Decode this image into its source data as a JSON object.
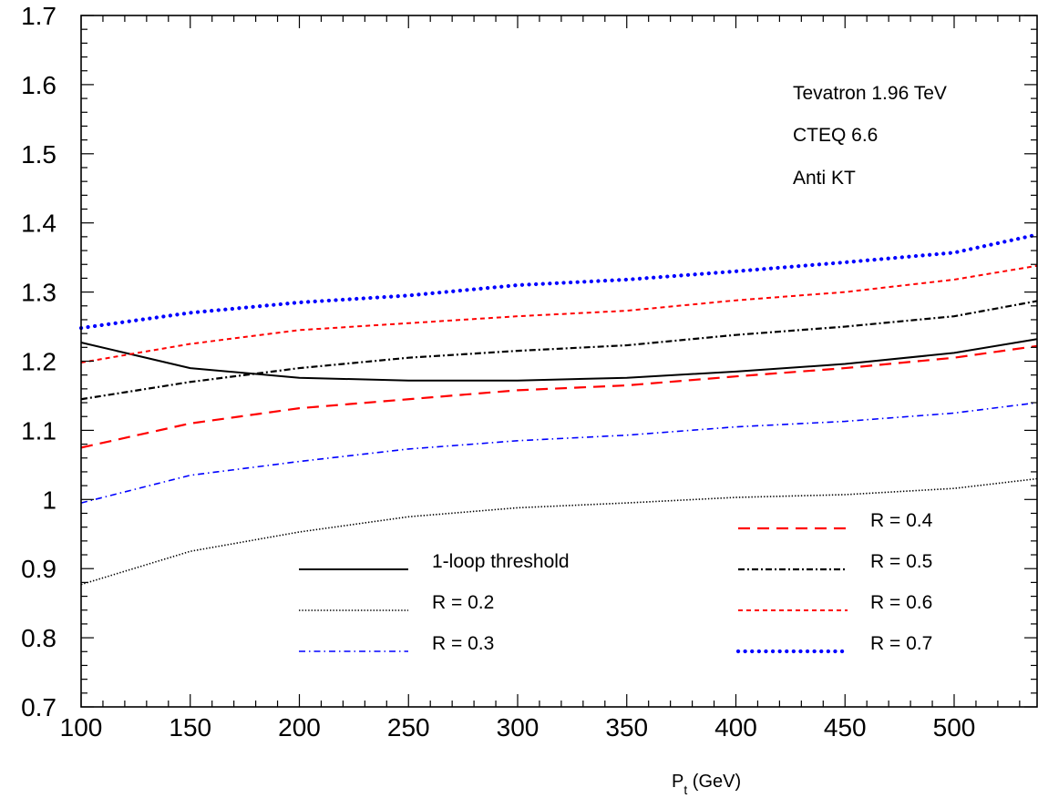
{
  "chart_data": {
    "type": "line",
    "title": "",
    "xlabel": "P",
    "xlabel_sub": "t",
    "xlabel_unit": " (GeV)",
    "ylabel": "",
    "xlim": [
      100,
      538
    ],
    "ylim": [
      0.7,
      1.7
    ],
    "x_ticks": [
      100,
      150,
      200,
      250,
      300,
      350,
      400,
      450,
      500
    ],
    "x_tick_labels": [
      "100",
      "150",
      "200",
      "250",
      "300",
      "350",
      "400",
      "450",
      "500"
    ],
    "y_ticks": [
      0.7,
      0.8,
      0.9,
      1.0,
      1.1,
      1.2,
      1.3,
      1.4,
      1.5,
      1.6,
      1.7
    ],
    "y_tick_labels": [
      "0.7",
      "0.8",
      "0.9",
      "1",
      "1.1",
      "1.2",
      "1.3",
      "1.4",
      "1.5",
      "1.6",
      "1.7"
    ],
    "grid": false,
    "annotations": [
      "Tevatron 1.96 TeV",
      "CTEQ 6.6",
      "Anti KT"
    ],
    "x": [
      100,
      150,
      200,
      250,
      300,
      350,
      400,
      450,
      500,
      538
    ],
    "series": [
      {
        "name": "1-loop threshold",
        "color": "#000000",
        "style": "solid",
        "values": [
          1.227,
          1.19,
          1.176,
          1.172,
          1.172,
          1.176,
          1.185,
          1.196,
          1.212,
          1.232
        ]
      },
      {
        "name": "R = 0.2",
        "color": "#000000",
        "style": "dotted",
        "values": [
          0.877,
          0.925,
          0.953,
          0.975,
          0.988,
          0.995,
          1.003,
          1.007,
          1.016,
          1.03
        ]
      },
      {
        "name": "R = 0.3",
        "color": "#0000ff",
        "style": "dashdot",
        "values": [
          0.995,
          1.035,
          1.055,
          1.073,
          1.085,
          1.093,
          1.105,
          1.113,
          1.125,
          1.14
        ]
      },
      {
        "name": "R = 0.4",
        "color": "#ff0000",
        "style": "dashed",
        "values": [
          1.075,
          1.11,
          1.132,
          1.145,
          1.158,
          1.165,
          1.178,
          1.19,
          1.205,
          1.222
        ]
      },
      {
        "name": "R = 0.5",
        "color": "#000000",
        "style": "dashdotdot",
        "values": [
          1.145,
          1.17,
          1.19,
          1.205,
          1.215,
          1.223,
          1.238,
          1.25,
          1.265,
          1.287
        ]
      },
      {
        "name": "R = 0.6",
        "color": "#ff0000",
        "style": "shortdash",
        "values": [
          1.198,
          1.225,
          1.245,
          1.255,
          1.265,
          1.273,
          1.288,
          1.3,
          1.318,
          1.338
        ]
      },
      {
        "name": "R = 0.7",
        "color": "#0000ff",
        "style": "bigdots",
        "values": [
          1.248,
          1.27,
          1.285,
          1.295,
          1.31,
          1.318,
          1.33,
          1.343,
          1.357,
          1.383
        ]
      }
    ]
  }
}
